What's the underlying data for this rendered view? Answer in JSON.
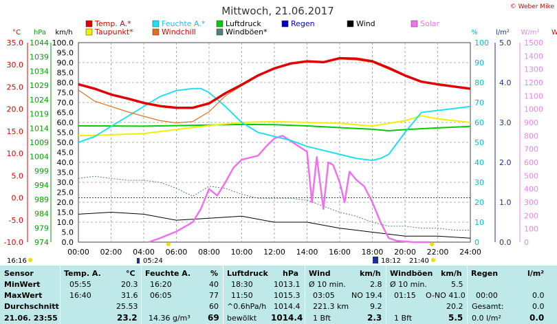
{
  "colors": {
    "temp": "#e00000",
    "dew": "#f0f000",
    "humidity": "#20e0f0",
    "windchill": "#e07020",
    "pressure": "#00cc00",
    "gusts": "#508080",
    "rain": "#0000c0",
    "wind": "#000000",
    "solar": "#f070f0",
    "axis_red": "#e00000",
    "axis_green": "#00a000",
    "axis_cyan": "#00c0d0",
    "axis_blue": "#203090",
    "axis_pink": "#f080f0"
  },
  "header": {
    "title": "Mittwoch, 21.06.2017",
    "copyright": "© Weber Mike"
  },
  "legend": [
    {
      "label": "Temp. A.*",
      "color": "#e00000"
    },
    {
      "label": "Feuchte A.*",
      "color": "#20e0f0"
    },
    {
      "label": "Luftdruck",
      "color": "#00cc00"
    },
    {
      "label": "Regen",
      "color": "#0000c0"
    },
    {
      "label": "Wind",
      "color": "#000000"
    },
    {
      "label": "Solar",
      "color": "#f070f0"
    },
    {
      "label": "Taupunkt*",
      "color": "#f0f000"
    },
    {
      "label": "Windchill",
      "color": "#e07020"
    },
    {
      "label": "Windböen*",
      "color": "#508080"
    }
  ],
  "axis_units": {
    "temp": "°C",
    "pressure": "hPa",
    "wind": "km/h",
    "humidity": "%",
    "rain": "l/m²",
    "solar": "W/m²",
    "edge": "W"
  },
  "axis_ticks": {
    "temp": [
      "35.0",
      "30.0",
      "25.0",
      "20.0",
      "15.0",
      "10.0",
      "5.0",
      "0.0",
      "-5.0",
      "-10.0"
    ],
    "pressure": [
      "1044",
      "1039",
      "1034",
      "1029",
      "1024",
      "1019",
      "1014",
      "1009",
      "1004",
      "999",
      "994",
      "989",
      "984",
      "979",
      "974"
    ],
    "wind": [
      "100.0",
      "95.0",
      "90.0",
      "85.0",
      "80.0",
      "75.0",
      "70.0",
      "65.0",
      "60.0",
      "55.0",
      "50.0",
      "45.0",
      "40.0",
      "35.0",
      "30.0",
      "25.0",
      "20.0",
      "15.0",
      "10.0",
      "5.0",
      "0.0"
    ],
    "humidity": [
      "100",
      "90",
      "80",
      "70",
      "60",
      "50",
      "40",
      "30",
      "20",
      "10",
      "0"
    ],
    "rain": [
      "5.0",
      "4.0",
      "3.0",
      "2.0",
      "1.0",
      "0.0"
    ],
    "solar": [
      "1500",
      "1400",
      "1300",
      "1200",
      "1100",
      "1000",
      "900",
      "800",
      "700",
      "600",
      "500",
      "400",
      "300",
      "200",
      "100",
      "0"
    ],
    "time": [
      "00:00",
      "02:00",
      "04:00",
      "06:00",
      "08:00",
      "10:00",
      "12:00",
      "14:00",
      "16:00",
      "18:00",
      "20:00",
      "22:00",
      "24:00"
    ]
  },
  "sun_markers": {
    "left_time": "16:16",
    "sunrise": "05:24",
    "sunset": "18:12",
    "dusk": "21:40"
  },
  "chart_data": {
    "type": "line",
    "title": "Mittwoch, 21.06.2017",
    "x_unit": "time of day (h)",
    "xlim": [
      0,
      24
    ],
    "series": [
      {
        "name": "Temp. A.*",
        "axis": "°C",
        "x": [
          0,
          1,
          2,
          3,
          4,
          5,
          6,
          7,
          8,
          9,
          10,
          11,
          12,
          13,
          14,
          15,
          16,
          17,
          18,
          19,
          20,
          21,
          22,
          23,
          24
        ],
        "values": [
          25.6,
          24.6,
          23.3,
          22.4,
          21.4,
          20.7,
          20.3,
          20.3,
          21.3,
          23.6,
          25.5,
          27.6,
          29.2,
          30.3,
          30.8,
          30.6,
          31.5,
          31.4,
          30.8,
          29.3,
          27.6,
          26.2,
          25.6,
          25.1,
          24.6
        ]
      },
      {
        "name": "Windchill",
        "axis": "°C",
        "x": [
          0,
          1,
          2,
          3,
          4,
          5,
          6,
          7,
          8,
          9,
          10,
          11,
          12,
          13,
          14,
          15,
          16,
          17,
          18,
          19,
          20,
          21,
          22,
          23,
          24
        ],
        "values": [
          24.3,
          21.8,
          20.6,
          19.4,
          18.4,
          17.4,
          16.9,
          17.2,
          19.4,
          23.0,
          25.3,
          27.6,
          29.2,
          30.3,
          30.8,
          30.5,
          31.3,
          31.1,
          30.6,
          29.0,
          27.4,
          26.1,
          25.5,
          25.0,
          24.5
        ]
      },
      {
        "name": "Taupunkt*",
        "axis": "°C",
        "x": [
          0,
          2,
          4,
          6,
          8,
          10,
          12,
          14,
          16,
          18,
          20,
          21,
          22,
          24
        ],
        "values": [
          14.0,
          14.2,
          14.5,
          15.4,
          16.3,
          17.0,
          17.2,
          17.0,
          16.8,
          16.2,
          17.4,
          18.5,
          17.8,
          17.0
        ]
      },
      {
        "name": "Feuchte A.*",
        "axis": "%",
        "x": [
          0,
          1,
          2,
          3,
          4,
          5,
          6,
          7,
          7.5,
          8,
          9,
          10,
          11,
          12,
          13,
          14,
          15,
          16,
          17,
          18,
          18.5,
          19,
          20,
          21,
          22,
          23,
          24
        ],
        "values": [
          50,
          53,
          58,
          63,
          68,
          73,
          76,
          77,
          77,
          75,
          68,
          60,
          55,
          53,
          51,
          48,
          46,
          44,
          42,
          41,
          42,
          44,
          55,
          65,
          66,
          67,
          68
        ]
      },
      {
        "name": "Luftdruck",
        "axis": "hPa",
        "x": [
          0,
          4,
          6,
          8,
          10,
          12,
          14,
          16,
          18,
          19,
          20,
          22,
          24
        ],
        "values": [
          1014.8,
          1014.7,
          1014.9,
          1015.1,
          1015.3,
          1015.2,
          1014.8,
          1014.2,
          1013.6,
          1013.1,
          1013.5,
          1014.1,
          1014.6
        ]
      },
      {
        "name": "Wind",
        "axis": "km/h",
        "x": [
          0,
          2,
          4,
          6,
          8,
          10,
          12,
          14,
          16,
          18,
          20,
          22,
          24
        ],
        "values": [
          14,
          15,
          14,
          11,
          12,
          13,
          10,
          10,
          7,
          5,
          3,
          3,
          2
        ]
      },
      {
        "name": "Windböen*",
        "axis": "km/h",
        "x": [
          0,
          1,
          2,
          3,
          4,
          5,
          6,
          7,
          8,
          9,
          10,
          11,
          12,
          13,
          14,
          15,
          16,
          17,
          18,
          19,
          20,
          21,
          22,
          23,
          24
        ],
        "values": [
          32,
          33,
          32,
          31,
          31,
          30,
          27,
          23,
          28,
          27,
          24,
          22,
          22,
          22,
          21,
          18,
          15,
          13,
          10,
          8,
          8,
          7,
          7,
          6,
          6
        ]
      },
      {
        "name": "Solar",
        "axis": "W/m²",
        "x": [
          4.3,
          5,
          6,
          7,
          7.5,
          8,
          8.5,
          9,
          9.5,
          10,
          11,
          11.5,
          12,
          12.5,
          13,
          13.5,
          14,
          14.3,
          14.6,
          15,
          15.3,
          15.6,
          16,
          16.3,
          16.6,
          17,
          17.5,
          18,
          18.5,
          19,
          19.5,
          20,
          20.5,
          21,
          21.5
        ],
        "values": [
          0,
          30,
          80,
          150,
          250,
          400,
          350,
          450,
          560,
          620,
          650,
          720,
          780,
          800,
          760,
          720,
          680,
          300,
          640,
          250,
          600,
          580,
          450,
          300,
          530,
          470,
          420,
          300,
          150,
          30,
          10,
          5,
          0,
          0,
          0
        ]
      }
    ],
    "rain": {
      "series_name": "Regen",
      "total_l_m2": 0.0
    }
  },
  "table": {
    "columns": {
      "sensor": "Sensor",
      "temp": "Temp. A.",
      "temp_unit": "°C",
      "hum": "Feuchte A.",
      "hum_unit": "%",
      "press": "Luftdruck",
      "press_unit": "hPa",
      "wind": "Wind",
      "wind_unit": "km/h",
      "gust": "Windböen",
      "gust_unit": "km/h",
      "rain": "Regen",
      "rain_unit": "l/m²"
    },
    "rows": {
      "min": {
        "label": "MinWert",
        "temp_time": "05:55",
        "temp": "20.3",
        "hum_time": "16:20",
        "hum": "40",
        "press_time": "18:30",
        "press": "1013.1",
        "wind_label": "Ø 10 min.",
        "wind": "2.8",
        "gust_label": "Ø 10 min.",
        "gust": "5.5",
        "rain_time": "",
        "rain": ""
      },
      "max": {
        "label": "MaxWert",
        "temp_time": "16:40",
        "temp": "31.6",
        "hum_time": "06:05",
        "hum": "77",
        "press_time": "11:50",
        "press": "1015.3",
        "wind_time": "03:05",
        "wind_dir": "NO 19.4",
        "gust_time": "01:15",
        "gust_dir": "O-NO 41.0",
        "rain_time": "00:00",
        "rain": "0.0"
      },
      "avg": {
        "label": "Durchschnitt",
        "temp": "25.53",
        "hum": "60",
        "press_label": "^0.6hPa/h",
        "press": "1014.4",
        "wind_label": "221.3 km",
        "wind": "9.2",
        "gust": "20.2",
        "rain_label": "Gesamt:",
        "rain": "0.0"
      },
      "cur": {
        "label": "21.06. 23:55",
        "temp": "23.2",
        "hum_label": "14.36 g/m³",
        "hum": "69",
        "press_label": "bewölkt",
        "press": "1014.4",
        "wind_label": "1 Bft",
        "wind": "2.3",
        "gust_label": "1 Bft",
        "gust": "5.5",
        "rain_label": "0.0 l/m²",
        "rain": "0.0"
      }
    }
  }
}
